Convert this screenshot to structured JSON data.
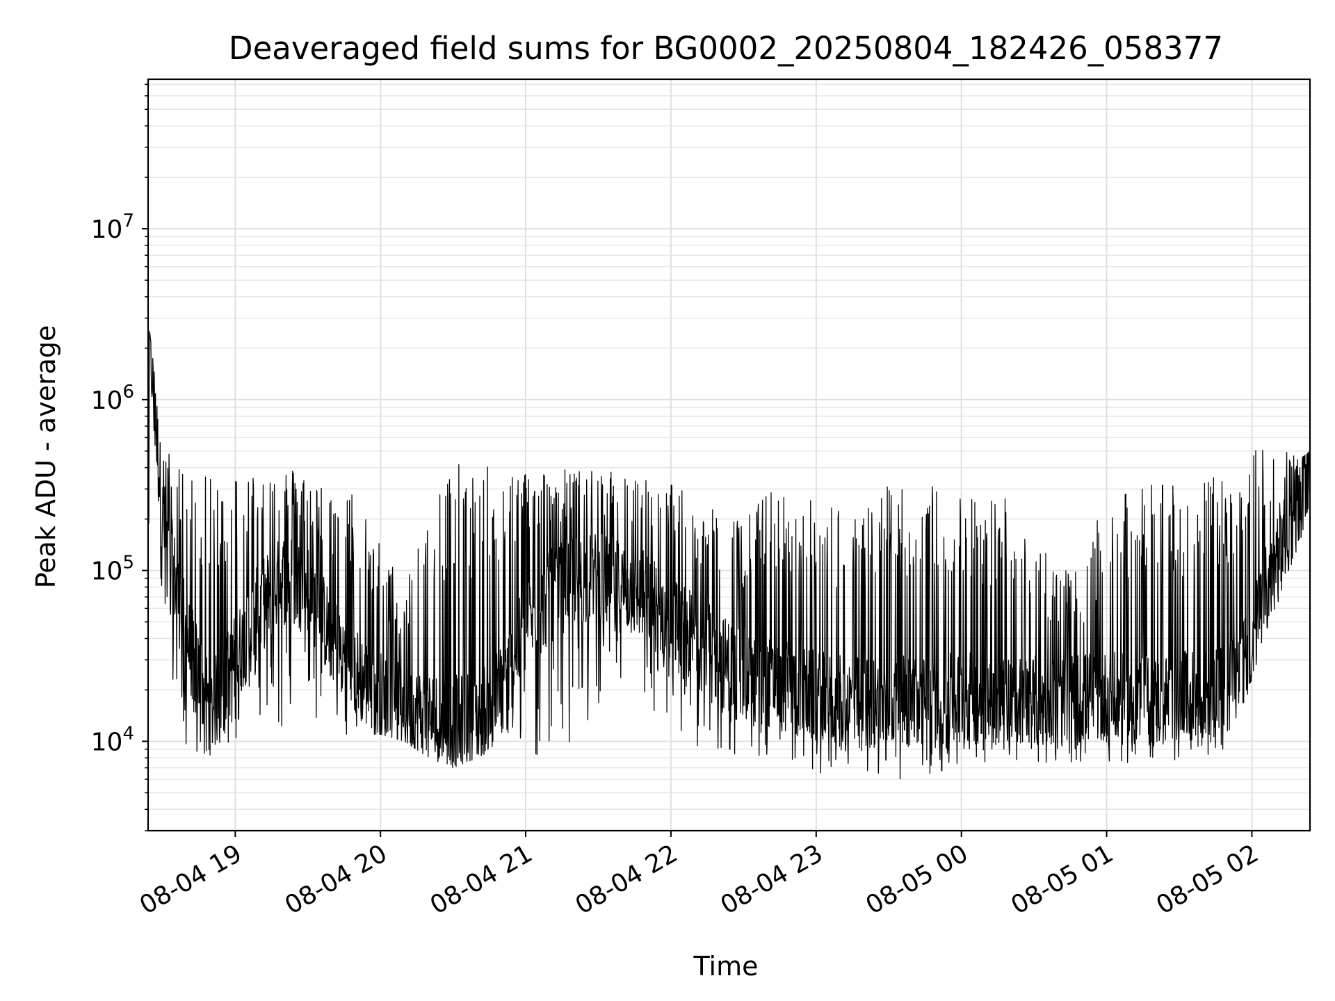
{
  "chart_data": {
    "type": "line",
    "title": "Deaveraged field sums for BG0002_20250804_182426_058377",
    "xlabel": "Time",
    "ylabel": "Peak ADU - average",
    "yscale": "log",
    "ylim": [
      3000,
      75000000
    ],
    "xlim": [
      "2025-08-04 18:24",
      "2025-08-05 02:24"
    ],
    "grid": true,
    "line_color": "#000000",
    "x_ticks": [
      "08-04 19",
      "08-04 20",
      "08-04 21",
      "08-04 22",
      "08-04 23",
      "08-05 00",
      "08-05 01",
      "08-05 02"
    ],
    "y_ticks": [
      {
        "value": 10000,
        "base": "10",
        "exp": "4"
      },
      {
        "value": 100000,
        "base": "10",
        "exp": "5"
      },
      {
        "value": 1000000,
        "base": "10",
        "exp": "6"
      },
      {
        "value": 10000000,
        "base": "10",
        "exp": "7"
      }
    ],
    "series": [
      {
        "x": [
          "2025-08-04 18:24",
          "2025-08-04 18:30",
          "2025-08-04 18:40",
          "2025-08-04 18:50",
          "2025-08-04 19:00",
          "2025-08-04 19:10",
          "2025-08-04 19:20",
          "2025-08-04 19:30",
          "2025-08-04 19:40",
          "2025-08-04 19:50",
          "2025-08-04 20:00",
          "2025-08-04 20:10",
          "2025-08-04 20:20",
          "2025-08-04 20:30",
          "2025-08-04 20:40",
          "2025-08-04 20:50",
          "2025-08-04 21:00",
          "2025-08-04 21:10",
          "2025-08-04 21:20",
          "2025-08-04 21:30",
          "2025-08-04 21:40",
          "2025-08-04 21:50",
          "2025-08-04 22:00",
          "2025-08-04 22:10",
          "2025-08-04 22:20",
          "2025-08-04 22:30",
          "2025-08-04 22:40",
          "2025-08-04 22:50",
          "2025-08-04 23:00",
          "2025-08-04 23:10",
          "2025-08-04 23:20",
          "2025-08-04 23:30",
          "2025-08-04 23:40",
          "2025-08-04 23:50",
          "2025-08-05 00:00",
          "2025-08-05 00:10",
          "2025-08-05 00:20",
          "2025-08-05 00:30",
          "2025-08-05 00:40",
          "2025-08-05 00:50",
          "2025-08-05 01:00",
          "2025-08-05 01:10",
          "2025-08-05 01:20",
          "2025-08-05 01:30",
          "2025-08-05 01:40",
          "2025-08-05 01:50",
          "2025-08-05 02:00",
          "2025-08-05 02:10",
          "2025-08-05 02:20",
          "2025-08-05 02:24"
        ],
        "base": [
          3000000,
          200000,
          40000,
          15000,
          30000,
          60000,
          90000,
          80000,
          40000,
          25000,
          18000,
          15000,
          14000,
          13000,
          14000,
          20000,
          45000,
          70000,
          90000,
          90000,
          80000,
          70000,
          50000,
          40000,
          30000,
          25000,
          22000,
          20000,
          18000,
          17000,
          17000,
          17000,
          17000,
          17000,
          18000,
          18000,
          17000,
          17000,
          17000,
          18000,
          18000,
          17000,
          17000,
          18000,
          18000,
          20000,
          40000,
          120000,
          250000,
          400000
        ],
        "peak": [
          3000000,
          550000,
          380000,
          350000,
          400000,
          420000,
          420000,
          380000,
          300000,
          300000,
          150000,
          80000,
          380000,
          420000,
          420000,
          400000,
          420000,
          400000,
          400000,
          380000,
          380000,
          360000,
          340000,
          250000,
          220000,
          200000,
          300000,
          280000,
          260000,
          250000,
          220000,
          380000,
          330000,
          320000,
          300000,
          280000,
          300000,
          200000,
          100000,
          100000,
          300000,
          280000,
          350000,
          350000,
          350000,
          350000,
          500000,
          600000,
          450000,
          500000
        ],
        "trough": [
          3000000,
          50000,
          8000,
          8000,
          10000,
          11000,
          12000,
          12000,
          11000,
          11000,
          11000,
          10000,
          8000,
          7000,
          8000,
          9000,
          8000,
          7000,
          9000,
          15000,
          20000,
          12000,
          10000,
          9000,
          8000,
          7500,
          7500,
          7500,
          6500,
          6500,
          6000,
          6000,
          6000,
          6500,
          7000,
          7500,
          8000,
          7000,
          7500,
          7500,
          7500,
          7500,
          7000,
          7500,
          8000,
          9000,
          20000,
          60000,
          150000,
          250000
        ]
      }
    ]
  }
}
